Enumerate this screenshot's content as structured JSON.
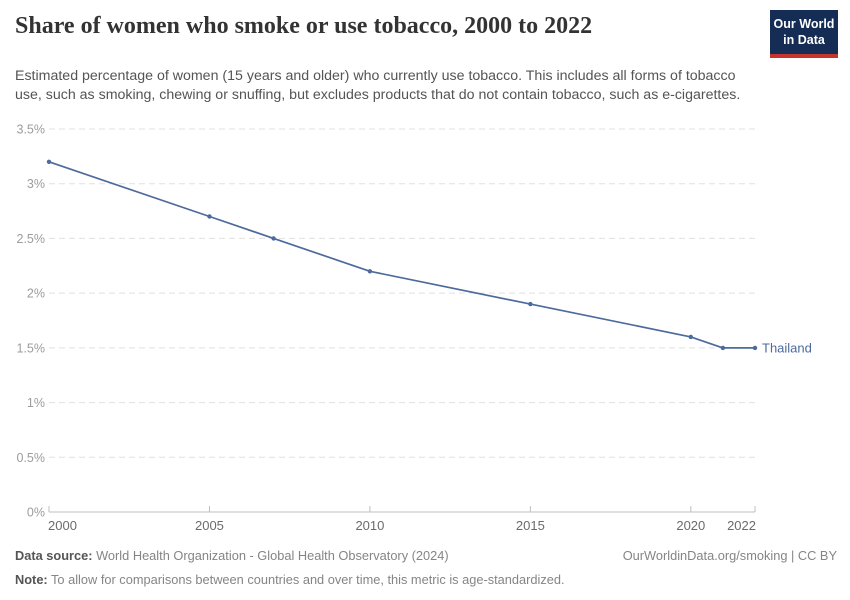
{
  "header": {
    "title": "Share of women who smoke or use tobacco, 2000 to 2022",
    "subtitle": "Estimated percentage of women (15 years and older) who currently use tobacco. This includes all forms of tobacco use, such as smoking, chewing or snuffing, but excludes products that do not contain tobacco, such as e-cigarettes.",
    "logo": {
      "line1": "Our World",
      "line2": "in Data"
    }
  },
  "chart_data": {
    "type": "line",
    "title": "Share of women who smoke or use tobacco, 2000 to 2022",
    "xlabel": "",
    "ylabel": "",
    "x": [
      2000,
      2005,
      2007,
      2010,
      2015,
      2020,
      2021,
      2022
    ],
    "series": [
      {
        "name": "Thailand",
        "values": [
          3.2,
          2.7,
          2.5,
          2.2,
          1.9,
          1.6,
          1.5,
          1.5
        ]
      }
    ],
    "xlim": [
      2000,
      2022
    ],
    "ylim": [
      0,
      3.5
    ],
    "x_ticks": [
      2000,
      2005,
      2010,
      2015,
      2020,
      2022
    ],
    "x_tick_labels": [
      "2000",
      "2005",
      "2010",
      "2015",
      "2020",
      "2022"
    ],
    "y_ticks": [
      0,
      0.5,
      1,
      1.5,
      2,
      2.5,
      3,
      3.5
    ],
    "y_tick_labels": [
      "0%",
      "0.5%",
      "1%",
      "1.5%",
      "2%",
      "2.5%",
      "3%",
      "3.5%"
    ],
    "grid": "horizontal-dashed",
    "legend_position": "end-of-line-label",
    "end_label": "Thailand"
  },
  "colors": {
    "series": "#4C6A9C",
    "grid": "#e0e0e0",
    "axis": "#bfbfbf",
    "y_tick_label": "#9c9c9c",
    "x_tick_label": "#6b6b6b",
    "logo_bg": "#152d54",
    "logo_stripe": "#c7342d"
  },
  "footer": {
    "data_source_label": "Data source:",
    "data_source_text": " World Health Organization - Global Health Observatory (2024)",
    "link": "OurWorldinData.org/smoking | CC BY",
    "note_label": "Note:",
    "note_text": " To allow for comparisons between countries and over time, this metric is age-standardized."
  }
}
